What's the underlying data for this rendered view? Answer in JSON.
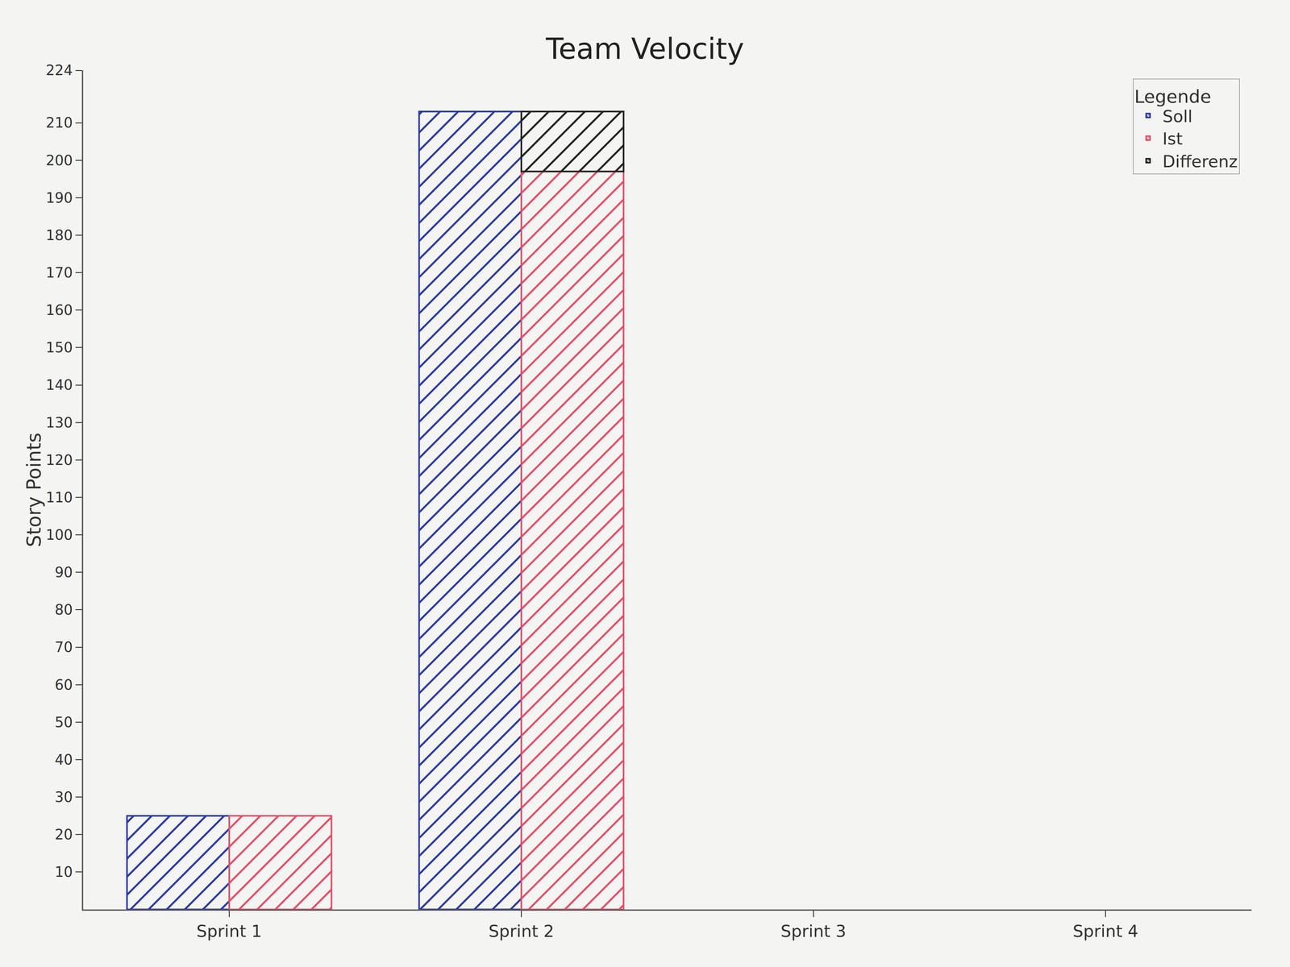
{
  "chart_data": {
    "type": "bar",
    "title": "Team Velocity",
    "y_label": "Story Points",
    "legend_title": "Legende",
    "categories": [
      "Sprint 1",
      "Sprint 2",
      "Sprint 3",
      "Sprint 4"
    ],
    "series": [
      {
        "name": "Soll",
        "color": "#2b3a9e",
        "values": [
          25,
          213,
          null,
          null
        ]
      },
      {
        "name": "Ist",
        "color": "#e0506a",
        "values": [
          25,
          197,
          null,
          null
        ]
      },
      {
        "name": "Differenz",
        "color": "#222222",
        "values": [
          null,
          16,
          null,
          null
        ]
      }
    ],
    "ylim": [
      0,
      224
    ],
    "yticks": [
      10,
      20,
      30,
      40,
      50,
      60,
      70,
      80,
      90,
      100,
      110,
      120,
      130,
      140,
      150,
      160,
      170,
      180,
      190,
      200,
      210,
      224
    ],
    "grid": false,
    "legend": "top right"
  }
}
